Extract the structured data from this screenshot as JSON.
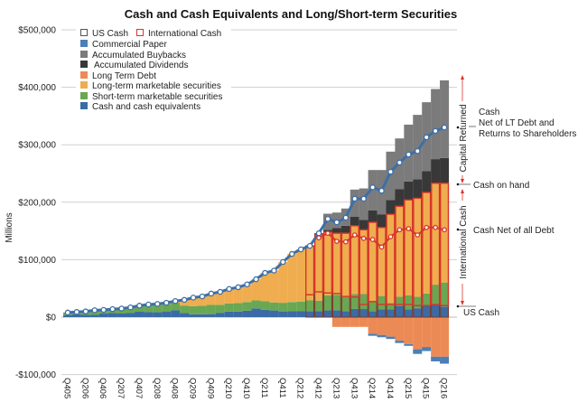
{
  "chart_data": {
    "type": "bar",
    "title": "Cash and Cash Equivalents and Long/Short-term Securities",
    "ylabel": "Millions",
    "ylim": [
      -100000,
      500000
    ],
    "y_ticks": [
      500000,
      400000,
      300000,
      200000,
      100000,
      0,
      -100000
    ],
    "y_tick_labels": [
      "$500,000",
      "$400,000",
      "$300,000",
      "$200,000",
      "$100,000",
      "$0",
      "-$100,000"
    ],
    "grid": true,
    "legend_position": "top-left",
    "categories": [
      "Q405",
      "Q106",
      "Q206",
      "Q306",
      "Q406",
      "Q107",
      "Q207",
      "Q307",
      "Q407",
      "Q108",
      "Q208",
      "Q308",
      "Q408",
      "Q109",
      "Q209",
      "Q309",
      "Q409",
      "Q110",
      "Q210",
      "Q310",
      "Q410",
      "Q111",
      "Q211",
      "Q311",
      "Q411",
      "Q112",
      "Q212",
      "Q312",
      "Q412",
      "Q113",
      "Q213",
      "Q313",
      "Q413",
      "Q114",
      "Q214",
      "Q314",
      "Q414",
      "Q115",
      "Q215",
      "Q315",
      "Q415",
      "Q116",
      "Q216"
    ],
    "x_tick_labels": [
      "Q405",
      "Q206",
      "Q406",
      "Q207",
      "Q407",
      "Q208",
      "Q408",
      "Q209",
      "Q409",
      "Q210",
      "Q410",
      "Q211",
      "Q411",
      "Q212",
      "Q412",
      "Q213",
      "Q413",
      "Q214",
      "Q414",
      "Q215",
      "Q415",
      "Q216"
    ],
    "series": [
      {
        "name": "Cash and cash equivalents",
        "kind": "bar",
        "color": "#3b6ba5",
        "values": [
          3500,
          5000,
          4000,
          4000,
          6400,
          7200,
          6300,
          7100,
          9400,
          9100,
          8500,
          9400,
          11900,
          7200,
          5000,
          5000,
          5300,
          7600,
          9700,
          9700,
          11300,
          15200,
          12900,
          11600,
          10000,
          10300,
          10200,
          10100,
          10700,
          11700,
          12000,
          10100,
          14300,
          14100,
          10100,
          13800,
          13800,
          19500,
          13800,
          15500,
          21100,
          21500,
          18300
        ]
      },
      {
        "name": "Short-term marketable securities",
        "kind": "bar",
        "color": "#6aa753",
        "values": [
          4500,
          4000,
          6000,
          7500,
          6200,
          6800,
          8700,
          9900,
          10600,
          12900,
          14000,
          13600,
          13100,
          13000,
          14000,
          15000,
          16000,
          14000,
          14000,
          15000,
          15000,
          14000,
          15000,
          14000,
          15000,
          16000,
          17000,
          19000,
          18000,
          26000,
          27000,
          25000,
          26000,
          26000,
          18000,
          23000,
          11000,
          16000,
          24000,
          20000,
          20000,
          35000,
          42000
        ]
      },
      {
        "name": "Long-term marketable securities",
        "kind": "bar",
        "color": "#efad4f",
        "values": [
          0,
          0,
          0,
          500,
          0,
          0,
          0,
          0,
          0,
          0,
          500,
          2000,
          3000,
          9800,
          15000,
          16000,
          19700,
          22400,
          25300,
          27300,
          30700,
          36800,
          49100,
          55400,
          71000,
          83700,
          90800,
          94900,
          115300,
          110300,
          107000,
          110900,
          118700,
          111900,
          136900,
          119200,
          154200,
          157500,
          166200,
          171500,
          175900,
          176500,
          172700
        ]
      },
      {
        "name": "Accumulated Dividends",
        "kind": "bar",
        "color": "#383838",
        "values": [
          0,
          0,
          0,
          0,
          0,
          0,
          0,
          0,
          0,
          0,
          0,
          0,
          0,
          0,
          0,
          0,
          0,
          0,
          0,
          0,
          0,
          0,
          0,
          0,
          0,
          0,
          0,
          0,
          2000,
          4000,
          9000,
          13000,
          16000,
          17000,
          21000,
          23000,
          25000,
          30000,
          32000,
          33000,
          37000,
          42000,
          44000
        ]
      },
      {
        "name": "Accumulated Buybacks",
        "kind": "bar",
        "color": "#7b7b7b",
        "values": [
          0,
          0,
          0,
          0,
          0,
          0,
          0,
          0,
          0,
          0,
          0,
          0,
          0,
          0,
          0,
          0,
          0,
          0,
          0,
          0,
          0,
          0,
          0,
          0,
          0,
          0,
          0,
          0,
          0,
          28000,
          27000,
          30000,
          47000,
          55000,
          70000,
          77000,
          84000,
          88000,
          99000,
          112000,
          120000,
          122000,
          135000
        ]
      },
      {
        "name": "Long Term Debt",
        "kind": "bar",
        "color": "#ec8a55",
        "values": [
          0,
          0,
          0,
          0,
          0,
          0,
          0,
          0,
          0,
          0,
          0,
          0,
          0,
          0,
          0,
          0,
          0,
          0,
          0,
          0,
          0,
          0,
          0,
          0,
          0,
          0,
          0,
          0,
          0,
          0,
          -17000,
          -17000,
          -17000,
          -17000,
          -29000,
          -31000,
          -34000,
          -41000,
          -47000,
          -56000,
          -52000,
          -69000,
          -69000
        ]
      },
      {
        "name": "Commercial Paper",
        "kind": "bar",
        "color": "#4a7fb8",
        "values": [
          0,
          0,
          0,
          0,
          0,
          0,
          0,
          0,
          0,
          0,
          0,
          0,
          0,
          0,
          0,
          0,
          0,
          0,
          0,
          0,
          0,
          0,
          0,
          0,
          0,
          0,
          0,
          0,
          0,
          0,
          0,
          0,
          0,
          0,
          -3500,
          -4000,
          -4000,
          -4000,
          -3000,
          -8000,
          -7000,
          -8000,
          -12000
        ]
      },
      {
        "name": "US Cash",
        "kind": "bar-outline",
        "color": "#7a3a2a",
        "values": [
          null,
          null,
          null,
          null,
          null,
          null,
          null,
          null,
          null,
          null,
          null,
          null,
          null,
          null,
          null,
          null,
          null,
          null,
          null,
          null,
          null,
          null,
          null,
          null,
          null,
          null,
          null,
          39000,
          44000,
          42000,
          41000,
          36000,
          35000,
          22000,
          27000,
          22000,
          22000,
          22000,
          22000,
          20000,
          20000,
          22000,
          20000
        ]
      },
      {
        "name": "International Cash",
        "kind": "bar-outline",
        "color": "#d8352a"
      },
      {
        "name": "Cash Net of LT Debt and Returns to Shareholders",
        "kind": "line",
        "color": "#3d6fa8",
        "values": [
          8000,
          9000,
          10000,
          12000,
          12600,
          14000,
          15000,
          17000,
          20000,
          22000,
          23000,
          25000,
          28000,
          30000,
          34000,
          36000,
          41000,
          44000,
          49000,
          52000,
          57000,
          66000,
          77000,
          81000,
          96000,
          110000,
          118000,
          124000,
          146000,
          171000,
          165000,
          173000,
          206000,
          206000,
          226000,
          220000,
          253000,
          269000,
          283000,
          289000,
          313000,
          324000,
          330000
        ]
      },
      {
        "name": "Cash Net of all Debt",
        "kind": "line",
        "color": "#d8352a",
        "values": [
          null,
          null,
          null,
          null,
          null,
          null,
          null,
          null,
          null,
          null,
          null,
          null,
          null,
          null,
          null,
          null,
          null,
          null,
          null,
          null,
          null,
          null,
          null,
          null,
          null,
          null,
          null,
          null,
          138000,
          146000,
          132000,
          131000,
          143000,
          137000,
          135000,
          122000,
          140000,
          152000,
          154000,
          143000,
          156000,
          156000,
          152000
        ]
      }
    ],
    "legend": {
      "us_cash": "US Cash",
      "international_cash": "International Cash",
      "commercial_paper": "Commercial Paper",
      "buybacks": "Accumulated Buybacks",
      "dividends": "Accumulated Dividends",
      "lt_debt": "Long Term Debt",
      "lt_securities": "Long-term marketable securities",
      "st_securities": "Short-term marketable securities",
      "cash_eq": "Cash and cash equivalents"
    },
    "annotations": {
      "cash_net_line1": "Cash",
      "cash_net_line2": "Net of LT Debt and",
      "cash_net_line3": "Returns to Shareholders",
      "cash_on_hand": "Cash on hand",
      "cash_net_all_debt": "Cash Net of all Debt",
      "us_cash": "US Cash",
      "capital_returned": "Capital Returned",
      "international_cash": "International Cash"
    },
    "annotation_colors": {
      "capital_returned": "#9a52b0",
      "international_cash": "#c8352a"
    }
  }
}
